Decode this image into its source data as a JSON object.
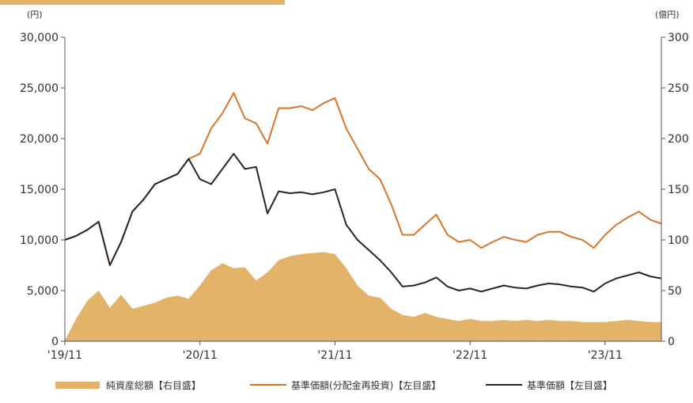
{
  "colors": {
    "net_assets": "#e3b36a",
    "nav_reinvested": "#d9752b",
    "nav": "#2b2522",
    "axis": "#555555",
    "header_bar": "#e3b36a"
  },
  "chart_data": {
    "type": "line",
    "left_unit": "(円)",
    "right_unit": "(億円)",
    "x_tick_labels": [
      "'19/11",
      "'20/11",
      "'21/11",
      "'22/11",
      "'23/11"
    ],
    "x_tick_dates": [
      "2019-11",
      "2020-11",
      "2021-11",
      "2022-11",
      "2023-11"
    ],
    "x_range": [
      "2019-11",
      "2024-04"
    ],
    "y_left": {
      "range": [
        0,
        30000
      ],
      "ticks": [
        0,
        5000,
        10000,
        15000,
        20000,
        25000,
        30000
      ],
      "tick_labels": [
        "0",
        "5,000",
        "10,000",
        "15,000",
        "20,000",
        "25,000",
        "30,000"
      ]
    },
    "y_right": {
      "range": [
        0,
        300
      ],
      "ticks": [
        0,
        50,
        100,
        150,
        200,
        250,
        300
      ],
      "tick_labels": [
        "0",
        "50",
        "100",
        "150",
        "200",
        "250",
        "300"
      ]
    },
    "grid": false,
    "legend_position": "bottom",
    "legend_names": [
      "純資産総額【右目盛】",
      "基準価額(分配金再投資)【左目盛】",
      "基準価額【左目盛】"
    ],
    "series": [
      {
        "name": "純資産総額【右目盛】",
        "type": "area",
        "axis": "right",
        "points": [
          [
            "2019-11",
            1
          ],
          [
            "2019-12",
            22
          ],
          [
            "2020-01",
            40
          ],
          [
            "2020-02",
            50
          ],
          [
            "2020-03",
            33
          ],
          [
            "2020-04",
            46
          ],
          [
            "2020-05",
            32
          ],
          [
            "2020-06",
            35
          ],
          [
            "2020-07",
            38
          ],
          [
            "2020-08",
            43
          ],
          [
            "2020-09",
            45
          ],
          [
            "2020-10",
            42
          ],
          [
            "2020-11",
            55
          ],
          [
            "2020-12",
            70
          ],
          [
            "2021-01",
            77
          ],
          [
            "2021-02",
            72
          ],
          [
            "2021-03",
            73
          ],
          [
            "2021-04",
            60
          ],
          [
            "2021-05",
            68
          ],
          [
            "2021-06",
            80
          ],
          [
            "2021-07",
            84
          ],
          [
            "2021-08",
            86
          ],
          [
            "2021-09",
            87
          ],
          [
            "2021-10",
            88
          ],
          [
            "2021-11",
            86
          ],
          [
            "2021-12",
            72
          ],
          [
            "2022-01",
            55
          ],
          [
            "2022-02",
            45
          ],
          [
            "2022-03",
            43
          ],
          [
            "2022-04",
            32
          ],
          [
            "2022-05",
            26
          ],
          [
            "2022-06",
            24
          ],
          [
            "2022-07",
            28
          ],
          [
            "2022-08",
            24
          ],
          [
            "2022-09",
            22
          ],
          [
            "2022-10",
            20
          ],
          [
            "2022-11",
            22
          ],
          [
            "2022-12",
            20
          ],
          [
            "2023-01",
            20
          ],
          [
            "2023-02",
            21
          ],
          [
            "2023-03",
            20
          ],
          [
            "2023-04",
            21
          ],
          [
            "2023-05",
            20
          ],
          [
            "2023-06",
            21
          ],
          [
            "2023-07",
            20
          ],
          [
            "2023-08",
            20
          ],
          [
            "2023-09",
            19
          ],
          [
            "2023-10",
            19
          ],
          [
            "2023-11",
            19
          ],
          [
            "2023-12",
            20
          ],
          [
            "2024-01",
            21
          ],
          [
            "2024-02",
            20
          ],
          [
            "2024-03",
            19
          ],
          [
            "2024-04",
            19
          ]
        ]
      },
      {
        "name": "基準価額(分配金再投資)【左目盛】",
        "type": "line",
        "axis": "left",
        "points": [
          [
            "2019-11",
            10000
          ],
          [
            "2019-12",
            10400
          ],
          [
            "2020-01",
            11000
          ],
          [
            "2020-02",
            11800
          ],
          [
            "2020-03",
            7500
          ],
          [
            "2020-04",
            9800
          ],
          [
            "2020-05",
            12800
          ],
          [
            "2020-06",
            14000
          ],
          [
            "2020-07",
            15500
          ],
          [
            "2020-08",
            16000
          ],
          [
            "2020-09",
            16500
          ],
          [
            "2020-10",
            18000
          ],
          [
            "2020-11",
            18500
          ],
          [
            "2020-12",
            21000
          ],
          [
            "2021-01",
            22500
          ],
          [
            "2021-02",
            24500
          ],
          [
            "2021-03",
            22000
          ],
          [
            "2021-04",
            21500
          ],
          [
            "2021-05",
            19500
          ],
          [
            "2021-06",
            23000
          ],
          [
            "2021-07",
            23000
          ],
          [
            "2021-08",
            23200
          ],
          [
            "2021-09",
            22800
          ],
          [
            "2021-10",
            23500
          ],
          [
            "2021-11",
            24000
          ],
          [
            "2021-12",
            21000
          ],
          [
            "2022-01",
            19000
          ],
          [
            "2022-02",
            17000
          ],
          [
            "2022-03",
            16000
          ],
          [
            "2022-04",
            13500
          ],
          [
            "2022-05",
            10500
          ],
          [
            "2022-06",
            10500
          ],
          [
            "2022-07",
            11500
          ],
          [
            "2022-08",
            12500
          ],
          [
            "2022-09",
            10500
          ],
          [
            "2022-10",
            9800
          ],
          [
            "2022-11",
            10000
          ],
          [
            "2022-12",
            9200
          ],
          [
            "2023-01",
            9800
          ],
          [
            "2023-02",
            10300
          ],
          [
            "2023-03",
            10000
          ],
          [
            "2023-04",
            9800
          ],
          [
            "2023-05",
            10500
          ],
          [
            "2023-06",
            10800
          ],
          [
            "2023-07",
            10800
          ],
          [
            "2023-08",
            10300
          ],
          [
            "2023-09",
            10000
          ],
          [
            "2023-10",
            9200
          ],
          [
            "2023-11",
            10500
          ],
          [
            "2023-12",
            11500
          ],
          [
            "2024-01",
            12200
          ],
          [
            "2024-02",
            12800
          ],
          [
            "2024-03",
            12000
          ],
          [
            "2024-04",
            11600
          ]
        ]
      },
      {
        "name": "基準価額【左目盛】",
        "type": "line",
        "axis": "left",
        "points": [
          [
            "2019-11",
            10000
          ],
          [
            "2019-12",
            10400
          ],
          [
            "2020-01",
            11000
          ],
          [
            "2020-02",
            11800
          ],
          [
            "2020-03",
            7500
          ],
          [
            "2020-04",
            9800
          ],
          [
            "2020-05",
            12800
          ],
          [
            "2020-06",
            14000
          ],
          [
            "2020-07",
            15500
          ],
          [
            "2020-08",
            16000
          ],
          [
            "2020-09",
            16500
          ],
          [
            "2020-10",
            18000
          ],
          [
            "2020-11",
            16000
          ],
          [
            "2020-12",
            15500
          ],
          [
            "2021-01",
            17000
          ],
          [
            "2021-02",
            18500
          ],
          [
            "2021-03",
            17000
          ],
          [
            "2021-04",
            17200
          ],
          [
            "2021-05",
            12600
          ],
          [
            "2021-06",
            14800
          ],
          [
            "2021-07",
            14600
          ],
          [
            "2021-08",
            14700
          ],
          [
            "2021-09",
            14500
          ],
          [
            "2021-10",
            14700
          ],
          [
            "2021-11",
            15000
          ],
          [
            "2021-12",
            11500
          ],
          [
            "2022-01",
            10000
          ],
          [
            "2022-02",
            9000
          ],
          [
            "2022-03",
            8000
          ],
          [
            "2022-04",
            6800
          ],
          [
            "2022-05",
            5400
          ],
          [
            "2022-06",
            5500
          ],
          [
            "2022-07",
            5800
          ],
          [
            "2022-08",
            6300
          ],
          [
            "2022-09",
            5400
          ],
          [
            "2022-10",
            5000
          ],
          [
            "2022-11",
            5200
          ],
          [
            "2022-12",
            4900
          ],
          [
            "2023-01",
            5200
          ],
          [
            "2023-02",
            5500
          ],
          [
            "2023-03",
            5300
          ],
          [
            "2023-04",
            5200
          ],
          [
            "2023-05",
            5500
          ],
          [
            "2023-06",
            5700
          ],
          [
            "2023-07",
            5600
          ],
          [
            "2023-08",
            5400
          ],
          [
            "2023-09",
            5300
          ],
          [
            "2023-10",
            4900
          ],
          [
            "2023-11",
            5700
          ],
          [
            "2023-12",
            6200
          ],
          [
            "2024-01",
            6500
          ],
          [
            "2024-02",
            6800
          ],
          [
            "2024-03",
            6400
          ],
          [
            "2024-04",
            6200
          ]
        ]
      }
    ]
  }
}
